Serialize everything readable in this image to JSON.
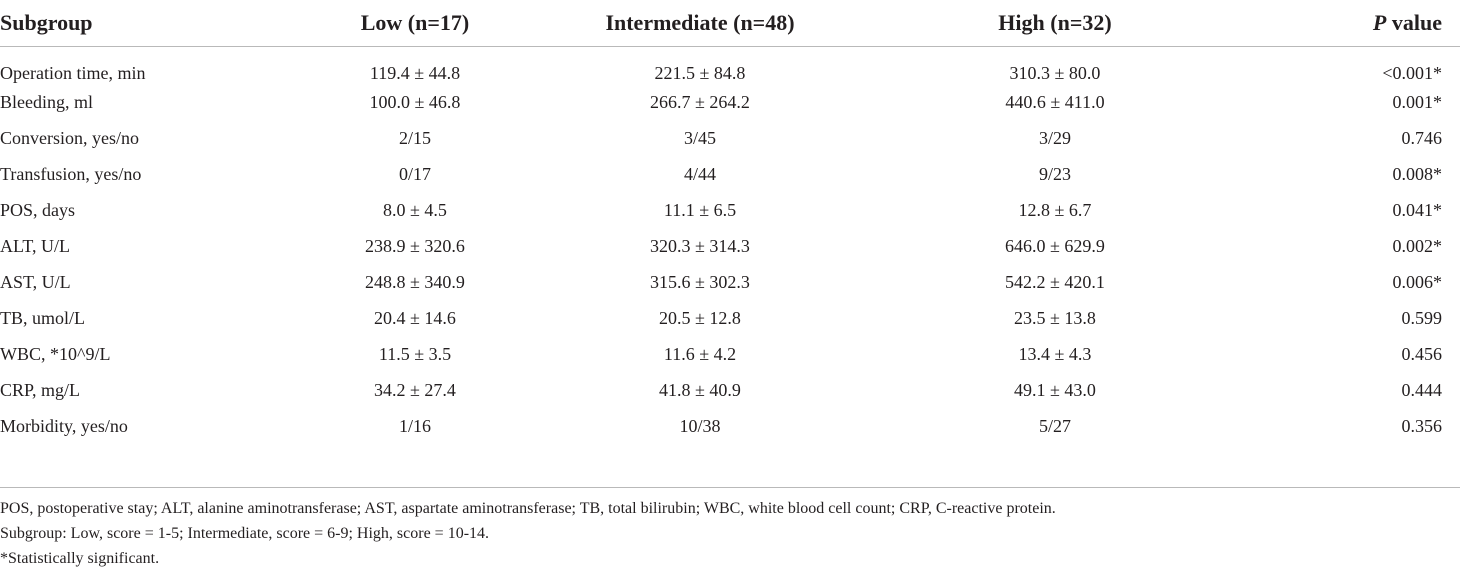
{
  "table": {
    "headers": [
      {
        "text": "Subgroup",
        "italic": ""
      },
      {
        "text": "Low (n=17)",
        "italic": ""
      },
      {
        "text": "Intermediate (n=48)",
        "italic": ""
      },
      {
        "text": "High (n=32)",
        "italic": ""
      },
      {
        "text": " value",
        "italic": "P"
      }
    ],
    "rows": [
      [
        "Operation time, min",
        "119.4 ± 44.8",
        "221.5 ± 84.8",
        "310.3 ± 80.0",
        "<0.001*"
      ],
      [
        "Bleeding, ml",
        "100.0 ± 46.8",
        "266.7 ± 264.2",
        "440.6 ± 411.0",
        "0.001*"
      ],
      [
        "Conversion, yes/no",
        "2/15",
        "3/45",
        "3/29",
        "0.746"
      ],
      [
        "Transfusion, yes/no",
        "0/17",
        "4/44",
        "9/23",
        "0.008*"
      ],
      [
        "POS, days",
        "8.0 ± 4.5",
        "11.1 ± 6.5",
        "12.8 ± 6.7",
        "0.041*"
      ],
      [
        "ALT, U/L",
        "238.9 ± 320.6",
        "320.3 ± 314.3",
        "646.0 ± 629.9",
        "0.002*"
      ],
      [
        "AST, U/L",
        "248.8 ± 340.9",
        "315.6 ± 302.3",
        "542.2 ± 420.1",
        "0.006*"
      ],
      [
        "TB, umol/L",
        "20.4 ± 14.6",
        "20.5 ± 12.8",
        "23.5 ± 13.8",
        "0.599"
      ],
      [
        "WBC, *10^9/L",
        "11.5 ± 3.5",
        "11.6 ± 4.2",
        "13.4 ± 4.3",
        "0.456"
      ],
      [
        "CRP, mg/L",
        "34.2 ± 27.4",
        "41.8 ± 40.9",
        "49.1 ± 43.0",
        "0.444"
      ],
      [
        "Morbidity, yes/no",
        "1/16",
        "10/38",
        "5/27",
        "0.356"
      ]
    ]
  },
  "footnotes": {
    "abbreviations": "POS, postoperative stay; ALT, alanine aminotransferase; AST, aspartate aminotransferase; TB, total bilirubin; WBC, white blood cell count; CRP, C-reactive protein.",
    "subgroup": "Subgroup: Low, score = 1-5; Intermediate, score = 6-9; High, score = 10-14.",
    "significance": "*Statistically significant."
  }
}
